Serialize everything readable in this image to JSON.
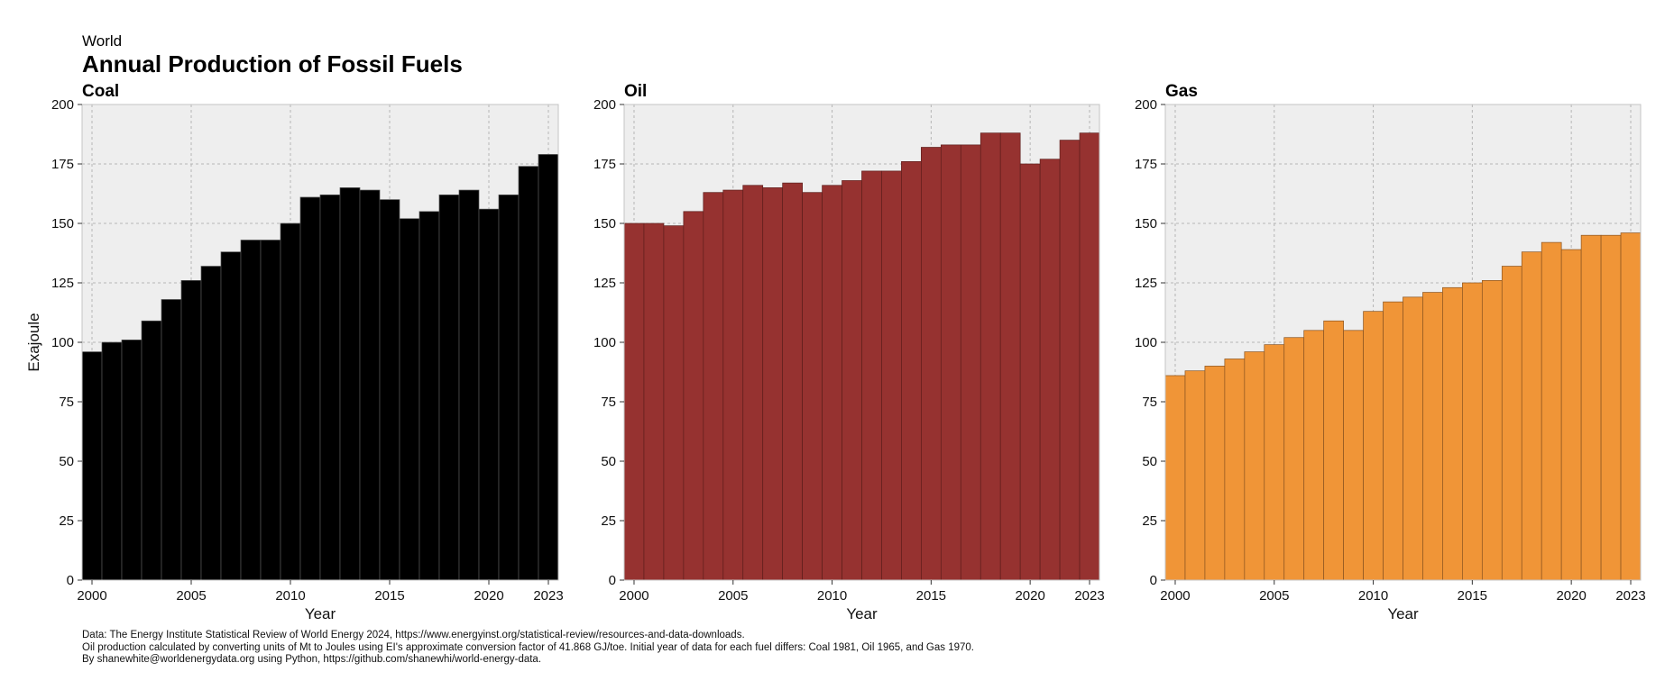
{
  "header": {
    "supertitle": "World",
    "title": "Annual Production of Fossil Fuels"
  },
  "footer": {
    "line1": "Data: The Energy Institute Statistical Review of World Energy 2024, https://www.energyinst.org/statistical-review/resources-and-data-downloads.",
    "line2": "Oil production calculated by converting units of Mt to Joules using EI's approximate conversion factor of 41.868 GJ/toe. Initial year of data for each fuel differs: Coal 1981, Oil 1965, and Gas 1970.",
    "line3": "By shanewhite@worldenergydata.org using Python, https://github.com/shanewhi/world-energy-data."
  },
  "chart_data": [
    {
      "type": "bar",
      "title": "Coal",
      "xlabel": "Year",
      "ylabel": "Exajoule",
      "color": "#000000",
      "edge_color": "#555555",
      "background": "#eeeeee",
      "grid": true,
      "x": [
        2000,
        2001,
        2002,
        2003,
        2004,
        2005,
        2006,
        2007,
        2008,
        2009,
        2010,
        2011,
        2012,
        2013,
        2014,
        2015,
        2016,
        2017,
        2018,
        2019,
        2020,
        2021,
        2022,
        2023
      ],
      "values": [
        96,
        100,
        101,
        109,
        118,
        126,
        132,
        138,
        143,
        143,
        150,
        161,
        162,
        165,
        164,
        160,
        152,
        155,
        162,
        164,
        156,
        162,
        174,
        179
      ],
      "xticks": [
        "2000",
        "2005",
        "2010",
        "2015",
        "2020",
        "2023"
      ],
      "yticks": [
        "0",
        "25",
        "50",
        "75",
        "100",
        "125",
        "150",
        "175",
        "200"
      ],
      "ylim": [
        0,
        200
      ]
    },
    {
      "type": "bar",
      "title": "Oil",
      "xlabel": "Year",
      "ylabel": "",
      "color": "#963230",
      "edge_color": "#5e1e1c",
      "background": "#eeeeee",
      "grid": true,
      "x": [
        2000,
        2001,
        2002,
        2003,
        2004,
        2005,
        2006,
        2007,
        2008,
        2009,
        2010,
        2011,
        2012,
        2013,
        2014,
        2015,
        2016,
        2017,
        2018,
        2019,
        2020,
        2021,
        2022,
        2023
      ],
      "values": [
        150,
        150,
        149,
        155,
        163,
        164,
        166,
        165,
        167,
        163,
        166,
        168,
        172,
        172,
        176,
        182,
        183,
        183,
        188,
        188,
        175,
        177,
        185,
        188
      ],
      "xticks": [
        "2000",
        "2005",
        "2010",
        "2015",
        "2020",
        "2023"
      ],
      "yticks": [
        "0",
        "25",
        "50",
        "75",
        "100",
        "125",
        "150",
        "175",
        "200"
      ],
      "ylim": [
        0,
        200
      ]
    },
    {
      "type": "bar",
      "title": "Gas",
      "xlabel": "Year",
      "ylabel": "",
      "color": "#f09537",
      "edge_color": "#8a5420",
      "background": "#eeeeee",
      "grid": true,
      "x": [
        2000,
        2001,
        2002,
        2003,
        2004,
        2005,
        2006,
        2007,
        2008,
        2009,
        2010,
        2011,
        2012,
        2013,
        2014,
        2015,
        2016,
        2017,
        2018,
        2019,
        2020,
        2021,
        2022,
        2023
      ],
      "values": [
        86,
        88,
        90,
        93,
        96,
        99,
        102,
        105,
        109,
        105,
        113,
        117,
        119,
        121,
        123,
        125,
        126,
        132,
        138,
        142,
        139,
        145,
        145,
        146
      ],
      "xticks": [
        "2000",
        "2005",
        "2010",
        "2015",
        "2020",
        "2023"
      ],
      "yticks": [
        "0",
        "25",
        "50",
        "75",
        "100",
        "125",
        "150",
        "175",
        "200"
      ],
      "ylim": [
        0,
        200
      ]
    }
  ]
}
